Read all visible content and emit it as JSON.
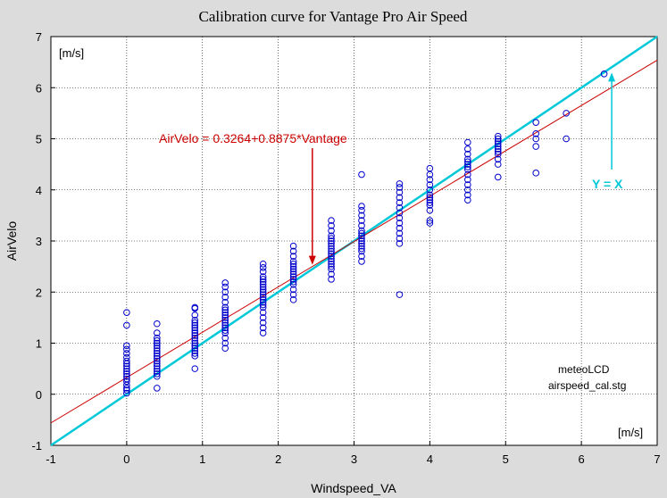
{
  "chart_data": {
    "type": "scatter",
    "title": "Calibration curve for Vantage Pro Air Speed",
    "xlabel": "Windspeed_VA",
    "ylabel": "AirVelo",
    "xlim": [
      -1,
      7
    ],
    "ylim": [
      -1,
      7
    ],
    "xticks": [
      "-1",
      "0",
      "1",
      "2",
      "3",
      "4",
      "5",
      "6",
      "7"
    ],
    "yticks": [
      "-1",
      "0",
      "1",
      "2",
      "3",
      "4",
      "5",
      "6",
      "7"
    ],
    "grid": true,
    "x_unit": "[m/s]",
    "y_unit": "[m/s]",
    "points": [
      [
        0,
        0.02
      ],
      [
        0,
        0.08
      ],
      [
        0,
        0.12
      ],
      [
        0,
        0.18
      ],
      [
        0,
        0.25
      ],
      [
        0,
        0.3
      ],
      [
        0,
        0.35
      ],
      [
        0,
        0.4
      ],
      [
        0,
        0.45
      ],
      [
        0,
        0.5
      ],
      [
        0,
        0.55
      ],
      [
        0,
        0.6
      ],
      [
        0,
        0.65
      ],
      [
        0,
        0.72
      ],
      [
        0,
        0.8
      ],
      [
        0,
        0.88
      ],
      [
        0,
        0.95
      ],
      [
        0,
        1.35
      ],
      [
        0,
        1.6
      ],
      [
        0.4,
        0.12
      ],
      [
        0.4,
        0.35
      ],
      [
        0.4,
        0.4
      ],
      [
        0.4,
        0.45
      ],
      [
        0.4,
        0.5
      ],
      [
        0.4,
        0.55
      ],
      [
        0.4,
        0.6
      ],
      [
        0.4,
        0.65
      ],
      [
        0.4,
        0.7
      ],
      [
        0.4,
        0.75
      ],
      [
        0.4,
        0.8
      ],
      [
        0.4,
        0.85
      ],
      [
        0.4,
        0.9
      ],
      [
        0.4,
        0.95
      ],
      [
        0.4,
        1.0
      ],
      [
        0.4,
        1.05
      ],
      [
        0.4,
        1.1
      ],
      [
        0.4,
        1.2
      ],
      [
        0.4,
        1.38
      ],
      [
        0.9,
        0.5
      ],
      [
        0.9,
        0.75
      ],
      [
        0.9,
        0.8
      ],
      [
        0.9,
        0.85
      ],
      [
        0.9,
        0.9
      ],
      [
        0.9,
        0.95
      ],
      [
        0.9,
        1.0
      ],
      [
        0.9,
        1.05
      ],
      [
        0.9,
        1.1
      ],
      [
        0.9,
        1.15
      ],
      [
        0.9,
        1.2
      ],
      [
        0.9,
        1.25
      ],
      [
        0.9,
        1.3
      ],
      [
        0.9,
        1.35
      ],
      [
        0.9,
        1.4
      ],
      [
        0.9,
        1.45
      ],
      [
        0.9,
        1.55
      ],
      [
        0.9,
        1.68
      ],
      [
        0.9,
        1.7
      ],
      [
        1.3,
        0.9
      ],
      [
        1.3,
        1.0
      ],
      [
        1.3,
        1.1
      ],
      [
        1.3,
        1.2
      ],
      [
        1.3,
        1.25
      ],
      [
        1.3,
        1.3
      ],
      [
        1.3,
        1.35
      ],
      [
        1.3,
        1.4
      ],
      [
        1.3,
        1.45
      ],
      [
        1.3,
        1.5
      ],
      [
        1.3,
        1.55
      ],
      [
        1.3,
        1.6
      ],
      [
        1.3,
        1.65
      ],
      [
        1.3,
        1.7
      ],
      [
        1.3,
        1.8
      ],
      [
        1.3,
        1.9
      ],
      [
        1.3,
        2.0
      ],
      [
        1.3,
        2.1
      ],
      [
        1.3,
        2.18
      ],
      [
        1.8,
        1.2
      ],
      [
        1.8,
        1.3
      ],
      [
        1.8,
        1.4
      ],
      [
        1.8,
        1.5
      ],
      [
        1.8,
        1.6
      ],
      [
        1.8,
        1.7
      ],
      [
        1.8,
        1.75
      ],
      [
        1.8,
        1.8
      ],
      [
        1.8,
        1.85
      ],
      [
        1.8,
        1.9
      ],
      [
        1.8,
        1.95
      ],
      [
        1.8,
        2.0
      ],
      [
        1.8,
        2.05
      ],
      [
        1.8,
        2.1
      ],
      [
        1.8,
        2.15
      ],
      [
        1.8,
        2.2
      ],
      [
        1.8,
        2.25
      ],
      [
        1.8,
        2.3
      ],
      [
        1.8,
        2.4
      ],
      [
        1.8,
        2.48
      ],
      [
        1.8,
        2.55
      ],
      [
        2.2,
        1.85
      ],
      [
        2.2,
        1.95
      ],
      [
        2.2,
        2.05
      ],
      [
        2.2,
        2.15
      ],
      [
        2.2,
        2.2
      ],
      [
        2.2,
        2.25
      ],
      [
        2.2,
        2.3
      ],
      [
        2.2,
        2.35
      ],
      [
        2.2,
        2.4
      ],
      [
        2.2,
        2.45
      ],
      [
        2.2,
        2.5
      ],
      [
        2.2,
        2.55
      ],
      [
        2.2,
        2.6
      ],
      [
        2.2,
        2.7
      ],
      [
        2.2,
        2.8
      ],
      [
        2.2,
        2.9
      ],
      [
        2.7,
        2.25
      ],
      [
        2.7,
        2.35
      ],
      [
        2.7,
        2.45
      ],
      [
        2.7,
        2.5
      ],
      [
        2.7,
        2.55
      ],
      [
        2.7,
        2.6
      ],
      [
        2.7,
        2.65
      ],
      [
        2.7,
        2.7
      ],
      [
        2.7,
        2.75
      ],
      [
        2.7,
        2.8
      ],
      [
        2.7,
        2.85
      ],
      [
        2.7,
        2.9
      ],
      [
        2.7,
        2.95
      ],
      [
        2.7,
        3.0
      ],
      [
        2.7,
        3.05
      ],
      [
        2.7,
        3.1
      ],
      [
        2.7,
        3.2
      ],
      [
        2.7,
        3.3
      ],
      [
        2.7,
        3.4
      ],
      [
        3.1,
        2.6
      ],
      [
        3.1,
        2.7
      ],
      [
        3.1,
        2.8
      ],
      [
        3.1,
        2.85
      ],
      [
        3.1,
        2.9
      ],
      [
        3.1,
        2.95
      ],
      [
        3.1,
        3.0
      ],
      [
        3.1,
        3.05
      ],
      [
        3.1,
        3.1
      ],
      [
        3.1,
        3.15
      ],
      [
        3.1,
        3.2
      ],
      [
        3.1,
        3.3
      ],
      [
        3.1,
        3.4
      ],
      [
        3.1,
        3.5
      ],
      [
        3.1,
        3.6
      ],
      [
        3.1,
        3.68
      ],
      [
        3.1,
        4.3
      ],
      [
        3.6,
        1.95
      ],
      [
        3.6,
        2.95
      ],
      [
        3.6,
        3.05
      ],
      [
        3.6,
        3.15
      ],
      [
        3.6,
        3.25
      ],
      [
        3.6,
        3.35
      ],
      [
        3.6,
        3.45
      ],
      [
        3.6,
        3.55
      ],
      [
        3.6,
        3.65
      ],
      [
        3.6,
        3.75
      ],
      [
        3.6,
        3.85
      ],
      [
        3.6,
        3.95
      ],
      [
        3.6,
        4.05
      ],
      [
        3.6,
        4.12
      ],
      [
        4.0,
        3.35
      ],
      [
        4.0,
        3.4
      ],
      [
        4.0,
        3.6
      ],
      [
        4.0,
        3.7
      ],
      [
        4.0,
        3.75
      ],
      [
        4.0,
        3.8
      ],
      [
        4.0,
        3.85
      ],
      [
        4.0,
        3.9
      ],
      [
        4.0,
        4.0
      ],
      [
        4.0,
        4.1
      ],
      [
        4.0,
        4.2
      ],
      [
        4.0,
        4.3
      ],
      [
        4.0,
        4.42
      ],
      [
        4.5,
        3.8
      ],
      [
        4.5,
        3.9
      ],
      [
        4.5,
        4.0
      ],
      [
        4.5,
        4.1
      ],
      [
        4.5,
        4.2
      ],
      [
        4.5,
        4.3
      ],
      [
        4.5,
        4.4
      ],
      [
        4.5,
        4.45
      ],
      [
        4.5,
        4.5
      ],
      [
        4.5,
        4.55
      ],
      [
        4.5,
        4.6
      ],
      [
        4.5,
        4.7
      ],
      [
        4.5,
        4.8
      ],
      [
        4.5,
        4.93
      ],
      [
        4.9,
        4.25
      ],
      [
        4.9,
        4.5
      ],
      [
        4.9,
        4.6
      ],
      [
        4.9,
        4.7
      ],
      [
        4.9,
        4.75
      ],
      [
        4.9,
        4.8
      ],
      [
        4.9,
        4.85
      ],
      [
        4.9,
        4.9
      ],
      [
        4.9,
        4.95
      ],
      [
        4.9,
        5.0
      ],
      [
        4.9,
        5.05
      ],
      [
        5.4,
        4.33
      ],
      [
        5.4,
        4.85
      ],
      [
        5.4,
        5.0
      ],
      [
        5.4,
        5.1
      ],
      [
        5.4,
        5.32
      ],
      [
        5.8,
        5.0
      ],
      [
        5.8,
        5.5
      ],
      [
        6.3,
        6.27
      ]
    ],
    "fit_line": {
      "intercept": 0.3264,
      "slope": 0.8875,
      "label": "AirVelo = 0.3264+0.8875*Vantage",
      "color": "#cc0000"
    },
    "identity_line": {
      "label": "Y = X",
      "color": "#00c8d8"
    },
    "point_color": "#0000cc",
    "annotations": [
      "meteoLCD",
      "airspeed_cal.stg"
    ]
  }
}
